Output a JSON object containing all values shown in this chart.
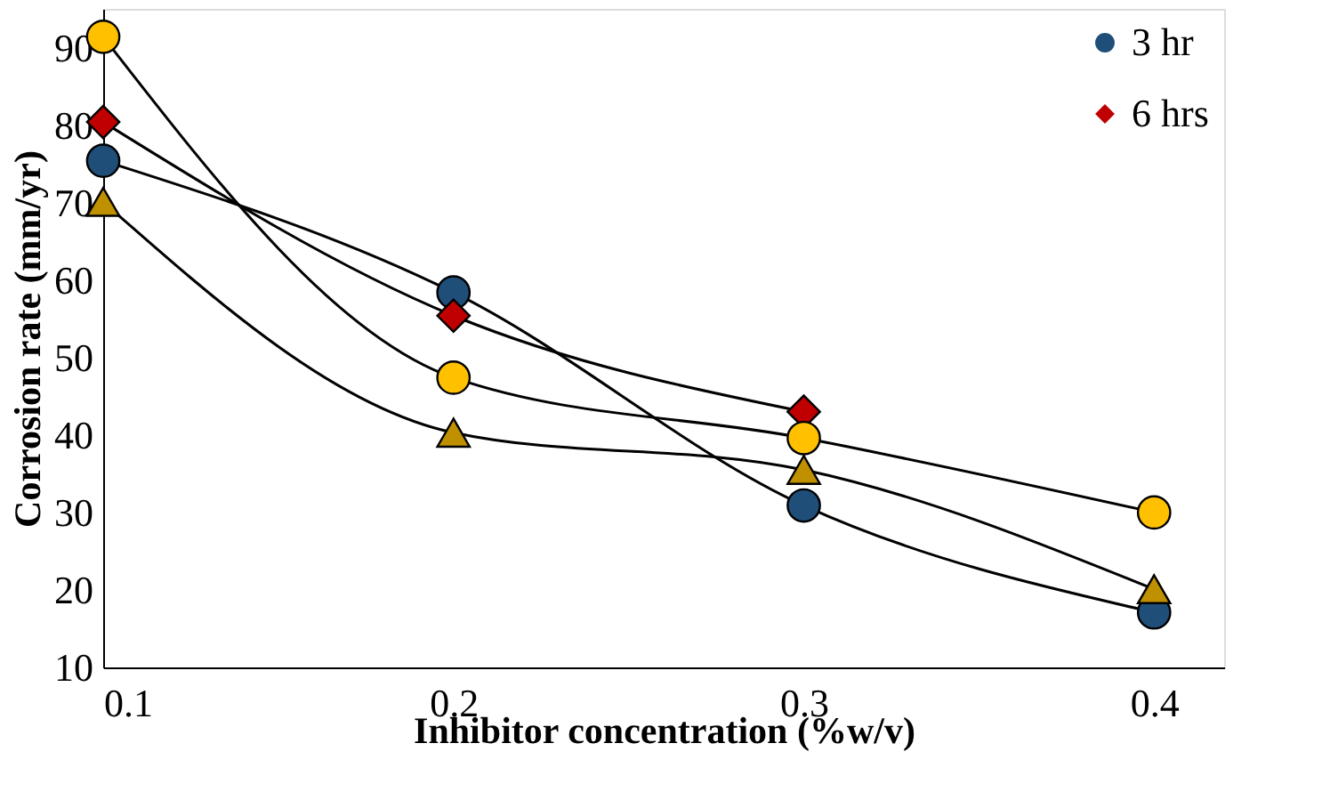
{
  "chart_data": {
    "type": "line",
    "xlabel": "Inhibitor concentration (%w/v)",
    "ylabel": "Corrosion rate (mm/yr)",
    "x": [
      0.1,
      0.2,
      0.3,
      0.4
    ],
    "series": [
      {
        "name": "3 hr",
        "color": "#1f4e79",
        "marker": "circle",
        "values": [
          75.4,
          58.4,
          30.9,
          17.1
        ]
      },
      {
        "name": "6 hrs",
        "color": "#c00000",
        "marker": "diamond",
        "values": [
          80.4,
          55.4,
          43.0,
          null
        ]
      },
      {
        "color": "#ffc000",
        "marker": "circle",
        "values": [
          91.4,
          47.4,
          39.6,
          30.0
        ]
      },
      {
        "color": "#bf9000",
        "marker": "triangle",
        "values": [
          70.1,
          40.3,
          35.5,
          20.1
        ]
      }
    ],
    "xlim": [
      0.1,
      0.42
    ],
    "xticks": [
      0.1,
      0.2,
      0.3,
      0.4
    ],
    "ylim": [
      10,
      95
    ],
    "yticks": [
      10,
      20,
      30,
      40,
      50,
      60,
      70,
      80,
      90
    ],
    "grid": false,
    "legend": "top right"
  }
}
